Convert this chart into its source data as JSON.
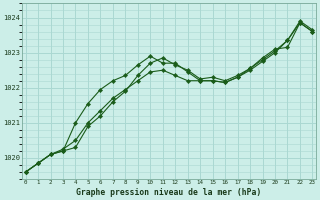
{
  "xlabel": "Graphe pression niveau de la mer (hPa)",
  "background_color": "#cceee8",
  "grid_color": "#aad8d2",
  "line_color": "#1a5c1a",
  "marker_color": "#1a5c1a",
  "ylim": [
    1019.4,
    1024.4
  ],
  "xlim": [
    -0.3,
    23.3
  ],
  "yticks": [
    1020,
    1021,
    1022,
    1023,
    1024
  ],
  "xticks": [
    0,
    1,
    2,
    3,
    4,
    5,
    6,
    7,
    8,
    9,
    10,
    11,
    12,
    13,
    14,
    15,
    16,
    17,
    18,
    19,
    20,
    21,
    22,
    23
  ],
  "series1": [
    1019.6,
    1019.85,
    1020.1,
    1020.25,
    1020.5,
    1021.0,
    1021.35,
    1021.7,
    1021.95,
    1022.2,
    1022.45,
    1022.5,
    1022.35,
    1022.2,
    1022.2,
    1022.2,
    1022.15,
    1022.3,
    1022.5,
    1022.75,
    1023.0,
    1023.35,
    1023.85,
    1023.6
  ],
  "series2": [
    1019.6,
    1019.85,
    1020.1,
    1020.2,
    1021.0,
    1021.55,
    1021.95,
    1022.2,
    1022.35,
    1022.65,
    1022.9,
    1022.7,
    1022.7,
    1022.45,
    1022.2,
    1022.2,
    1022.15,
    1022.3,
    1022.55,
    1022.85,
    1023.1,
    1023.15,
    1023.85,
    1023.6
  ],
  "series3": [
    1019.6,
    1019.85,
    1020.1,
    1020.2,
    1020.3,
    1020.9,
    1021.2,
    1021.6,
    1021.9,
    1022.35,
    1022.7,
    1022.85,
    1022.65,
    1022.5,
    1022.25,
    1022.3,
    1022.2,
    1022.35,
    1022.55,
    1022.8,
    1023.05,
    1023.35,
    1023.9,
    1023.65
  ]
}
